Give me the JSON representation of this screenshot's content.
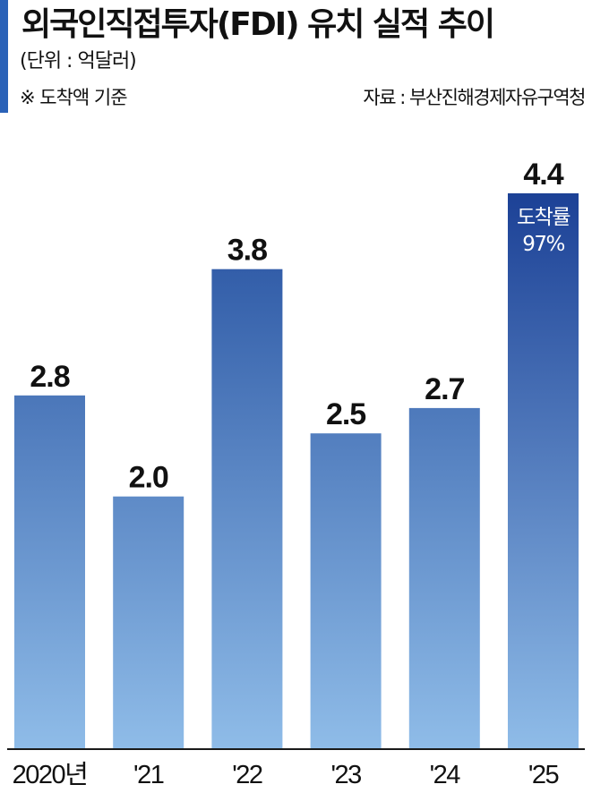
{
  "header": {
    "title": "외국인직접투자(FDI) 유치 실적 추이",
    "unit": "(단위 : 억달러)",
    "note": "※ 도착액 기준",
    "source": "자료 : 부산진해경제자유구역청"
  },
  "colors": {
    "accent": "#2a62b8",
    "bar_top": "#244f9f",
    "bar_bottom": "#8fbce8",
    "highlight_top": "#1c4196",
    "text": "#111111",
    "inside_text": "#ffffff"
  },
  "chart_data": {
    "type": "bar",
    "categories": [
      "2020년",
      "'21",
      "'22",
      "'23",
      "'24",
      "'25"
    ],
    "values": [
      2.8,
      2.0,
      3.8,
      2.5,
      2.7,
      4.4
    ],
    "value_labels": [
      "2.8",
      "2.0",
      "3.8",
      "2.5",
      "2.7",
      "4.4"
    ],
    "ylim": [
      0,
      4.4
    ],
    "title": "외국인직접투자(FDI) 유치 실적 추이",
    "xlabel": "",
    "ylabel": "",
    "unit": "억달러",
    "grid": false,
    "legend": "none",
    "highlight_index": 5,
    "annotations": [
      {
        "category": "'25",
        "position": "inside-top",
        "lines": [
          "도착률",
          "97%"
        ]
      }
    ]
  }
}
